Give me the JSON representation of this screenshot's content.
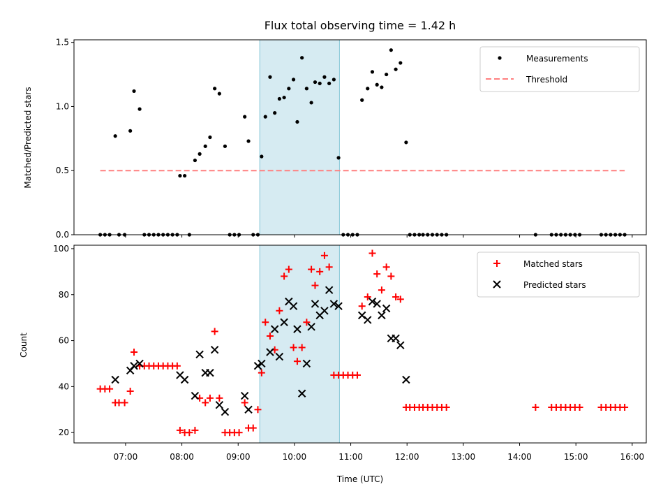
{
  "chart_data": [
    {
      "type": "scatter",
      "title": "Flux total observing time = 1.42 h",
      "xlabel": "",
      "ylabel": "Matched/Predicted stars",
      "xlim": [
        "06:05",
        "16:15"
      ],
      "ylim": [
        0,
        1.52
      ],
      "yticks": [
        "0.0",
        "0.5",
        "1.0",
        "1.5"
      ],
      "shaded_interval": [
        "09:23",
        "10:48"
      ],
      "legend_position": "upper right",
      "series": [
        {
          "name": "Measurements",
          "style": "dot",
          "color": "#000000",
          "points": [
            [
              "06:33",
              0
            ],
            [
              "06:38",
              0
            ],
            [
              "06:43",
              0
            ],
            [
              "06:49",
              0.77
            ],
            [
              "06:53",
              0
            ],
            [
              "06:59",
              0
            ],
            [
              "07:05",
              0.81
            ],
            [
              "07:09",
              1.12
            ],
            [
              "07:15",
              0.98
            ],
            [
              "07:20",
              0
            ],
            [
              "07:25",
              0
            ],
            [
              "07:30",
              0
            ],
            [
              "07:35",
              0
            ],
            [
              "07:40",
              0
            ],
            [
              "07:45",
              0
            ],
            [
              "07:50",
              0
            ],
            [
              "07:55",
              0
            ],
            [
              "07:58",
              0.46
            ],
            [
              "08:03",
              0.46
            ],
            [
              "08:08",
              0
            ],
            [
              "08:14",
              0.58
            ],
            [
              "08:19",
              0.63
            ],
            [
              "08:25",
              0.69
            ],
            [
              "08:30",
              0.76
            ],
            [
              "08:35",
              1.14
            ],
            [
              "08:40",
              1.1
            ],
            [
              "08:46",
              0.69
            ],
            [
              "08:51",
              0
            ],
            [
              "08:56",
              0
            ],
            [
              "09:01",
              0
            ],
            [
              "09:07",
              0.92
            ],
            [
              "09:11",
              0.73
            ],
            [
              "09:16",
              0
            ],
            [
              "09:21",
              0
            ],
            [
              "09:25",
              0.61
            ],
            [
              "09:29",
              0.92
            ],
            [
              "09:34",
              1.23
            ],
            [
              "09:39",
              0.95
            ],
            [
              "09:44",
              1.06
            ],
            [
              "09:49",
              1.07
            ],
            [
              "09:54",
              1.14
            ],
            [
              "09:59",
              1.21
            ],
            [
              "10:03",
              0.88
            ],
            [
              "10:08",
              1.38
            ],
            [
              "10:13",
              1.14
            ],
            [
              "10:18",
              1.03
            ],
            [
              "10:22",
              1.19
            ],
            [
              "10:27",
              1.18
            ],
            [
              "10:32",
              1.23
            ],
            [
              "10:37",
              1.18
            ],
            [
              "10:42",
              1.21
            ],
            [
              "10:47",
              0.6
            ],
            [
              "10:52",
              0
            ],
            [
              "10:57",
              0
            ],
            [
              "11:02",
              0
            ],
            [
              "11:07",
              0
            ],
            [
              "11:12",
              1.05
            ],
            [
              "11:18",
              1.14
            ],
            [
              "11:23",
              1.27
            ],
            [
              "11:28",
              1.17
            ],
            [
              "11:33",
              1.15
            ],
            [
              "11:38",
              1.25
            ],
            [
              "11:43",
              1.44
            ],
            [
              "11:48",
              1.29
            ],
            [
              "11:53",
              1.34
            ],
            [
              "11:59",
              0.72
            ],
            [
              "12:03",
              0
            ],
            [
              "12:08",
              0
            ],
            [
              "12:13",
              0
            ],
            [
              "12:17",
              0
            ],
            [
              "12:22",
              0
            ],
            [
              "12:27",
              0
            ],
            [
              "12:32",
              0
            ],
            [
              "12:37",
              0
            ],
            [
              "12:42",
              0
            ],
            [
              "14:17",
              0
            ],
            [
              "14:34",
              0
            ],
            [
              "14:39",
              0
            ],
            [
              "14:44",
              0
            ],
            [
              "14:49",
              0
            ],
            [
              "14:54",
              0
            ],
            [
              "14:59",
              0
            ],
            [
              "15:04",
              0
            ],
            [
              "15:27",
              0
            ],
            [
              "15:32",
              0
            ],
            [
              "15:37",
              0
            ],
            [
              "15:42",
              0
            ],
            [
              "15:47",
              0
            ],
            [
              "15:52",
              0
            ]
          ]
        },
        {
          "name": "Threshold",
          "style": "dashed-line",
          "color": "#ff7f7f",
          "points": [
            [
              "06:33",
              0.5
            ],
            [
              "15:52",
              0.5
            ]
          ]
        }
      ]
    },
    {
      "type": "scatter",
      "title": "",
      "xlabel": "Time (UTC)",
      "ylabel": "Count",
      "xlim": [
        "06:05",
        "16:15"
      ],
      "ylim": [
        15.5,
        101.5
      ],
      "yticks": [
        "20",
        "40",
        "60",
        "80",
        "100"
      ],
      "xticks": [
        "07:00",
        "08:00",
        "09:00",
        "10:00",
        "11:00",
        "12:00",
        "13:00",
        "14:00",
        "15:00",
        "16:00"
      ],
      "shaded_interval": [
        "09:23",
        "10:48"
      ],
      "legend_position": "upper right",
      "series": [
        {
          "name": "Matched stars",
          "marker": "plus",
          "color": "#ff0000",
          "points": [
            [
              "06:33",
              39
            ],
            [
              "06:38",
              39
            ],
            [
              "06:43",
              39
            ],
            [
              "06:49",
              33
            ],
            [
              "06:53",
              33
            ],
            [
              "06:59",
              33
            ],
            [
              "07:05",
              38
            ],
            [
              "07:09",
              55
            ],
            [
              "07:15",
              49
            ],
            [
              "07:20",
              49
            ],
            [
              "07:25",
              49
            ],
            [
              "07:30",
              49
            ],
            [
              "07:35",
              49
            ],
            [
              "07:40",
              49
            ],
            [
              "07:45",
              49
            ],
            [
              "07:50",
              49
            ],
            [
              "07:55",
              49
            ],
            [
              "07:58",
              21
            ],
            [
              "08:03",
              20
            ],
            [
              "08:08",
              20
            ],
            [
              "08:14",
              21
            ],
            [
              "08:19",
              35
            ],
            [
              "08:25",
              33
            ],
            [
              "08:30",
              35
            ],
            [
              "08:35",
              64
            ],
            [
              "08:40",
              35
            ],
            [
              "08:46",
              20
            ],
            [
              "08:51",
              20
            ],
            [
              "08:56",
              20
            ],
            [
              "09:01",
              20
            ],
            [
              "09:07",
              33
            ],
            [
              "09:11",
              22
            ],
            [
              "09:16",
              22
            ],
            [
              "09:21",
              30
            ],
            [
              "09:25",
              46
            ],
            [
              "09:29",
              68
            ],
            [
              "09:34",
              62
            ],
            [
              "09:39",
              56
            ],
            [
              "09:44",
              73
            ],
            [
              "09:49",
              88
            ],
            [
              "09:54",
              91
            ],
            [
              "09:59",
              57
            ],
            [
              "10:03",
              51
            ],
            [
              "10:08",
              57
            ],
            [
              "10:13",
              68
            ],
            [
              "10:18",
              91
            ],
            [
              "10:22",
              84
            ],
            [
              "10:27",
              90
            ],
            [
              "10:32",
              97
            ],
            [
              "10:37",
              92
            ],
            [
              "10:42",
              45
            ],
            [
              "10:47",
              45
            ],
            [
              "10:52",
              45
            ],
            [
              "10:57",
              45
            ],
            [
              "11:02",
              45
            ],
            [
              "11:07",
              45
            ],
            [
              "11:12",
              75
            ],
            [
              "11:18",
              79
            ],
            [
              "11:23",
              98
            ],
            [
              "11:28",
              89
            ],
            [
              "11:33",
              82
            ],
            [
              "11:38",
              92
            ],
            [
              "11:43",
              88
            ],
            [
              "11:48",
              79
            ],
            [
              "11:53",
              78
            ],
            [
              "11:59",
              31
            ],
            [
              "12:03",
              31
            ],
            [
              "12:08",
              31
            ],
            [
              "12:13",
              31
            ],
            [
              "12:17",
              31
            ],
            [
              "12:22",
              31
            ],
            [
              "12:27",
              31
            ],
            [
              "12:32",
              31
            ],
            [
              "12:37",
              31
            ],
            [
              "12:42",
              31
            ],
            [
              "14:17",
              31
            ],
            [
              "14:34",
              31
            ],
            [
              "14:39",
              31
            ],
            [
              "14:44",
              31
            ],
            [
              "14:49",
              31
            ],
            [
              "14:54",
              31
            ],
            [
              "14:59",
              31
            ],
            [
              "15:04",
              31
            ],
            [
              "15:27",
              31
            ],
            [
              "15:32",
              31
            ],
            [
              "15:37",
              31
            ],
            [
              "15:42",
              31
            ],
            [
              "15:47",
              31
            ],
            [
              "15:52",
              31
            ]
          ]
        },
        {
          "name": "Predicted stars",
          "marker": "x",
          "color": "#000000",
          "points": [
            [
              "06:49",
              43
            ],
            [
              "07:05",
              47
            ],
            [
              "07:09",
              49
            ],
            [
              "07:15",
              50
            ],
            [
              "07:58",
              45
            ],
            [
              "08:03",
              43
            ],
            [
              "08:14",
              36
            ],
            [
              "08:19",
              54
            ],
            [
              "08:25",
              46
            ],
            [
              "08:30",
              46
            ],
            [
              "08:35",
              56
            ],
            [
              "08:40",
              32
            ],
            [
              "08:46",
              29
            ],
            [
              "09:07",
              36
            ],
            [
              "09:11",
              30
            ],
            [
              "09:21",
              49
            ],
            [
              "09:25",
              50
            ],
            [
              "09:34",
              55
            ],
            [
              "09:39",
              65
            ],
            [
              "09:44",
              53
            ],
            [
              "09:49",
              68
            ],
            [
              "09:54",
              77
            ],
            [
              "09:59",
              75
            ],
            [
              "10:03",
              65
            ],
            [
              "10:08",
              37
            ],
            [
              "10:13",
              50
            ],
            [
              "10:18",
              66
            ],
            [
              "10:22",
              76
            ],
            [
              "10:27",
              71
            ],
            [
              "10:32",
              73
            ],
            [
              "10:37",
              82
            ],
            [
              "10:42",
              76
            ],
            [
              "10:47",
              75
            ],
            [
              "11:12",
              71
            ],
            [
              "11:18",
              69
            ],
            [
              "11:23",
              77
            ],
            [
              "11:28",
              76
            ],
            [
              "11:33",
              71
            ],
            [
              "11:38",
              74
            ],
            [
              "11:43",
              61
            ],
            [
              "11:48",
              61
            ],
            [
              "11:53",
              58
            ],
            [
              "11:59",
              43
            ]
          ]
        }
      ]
    }
  ]
}
